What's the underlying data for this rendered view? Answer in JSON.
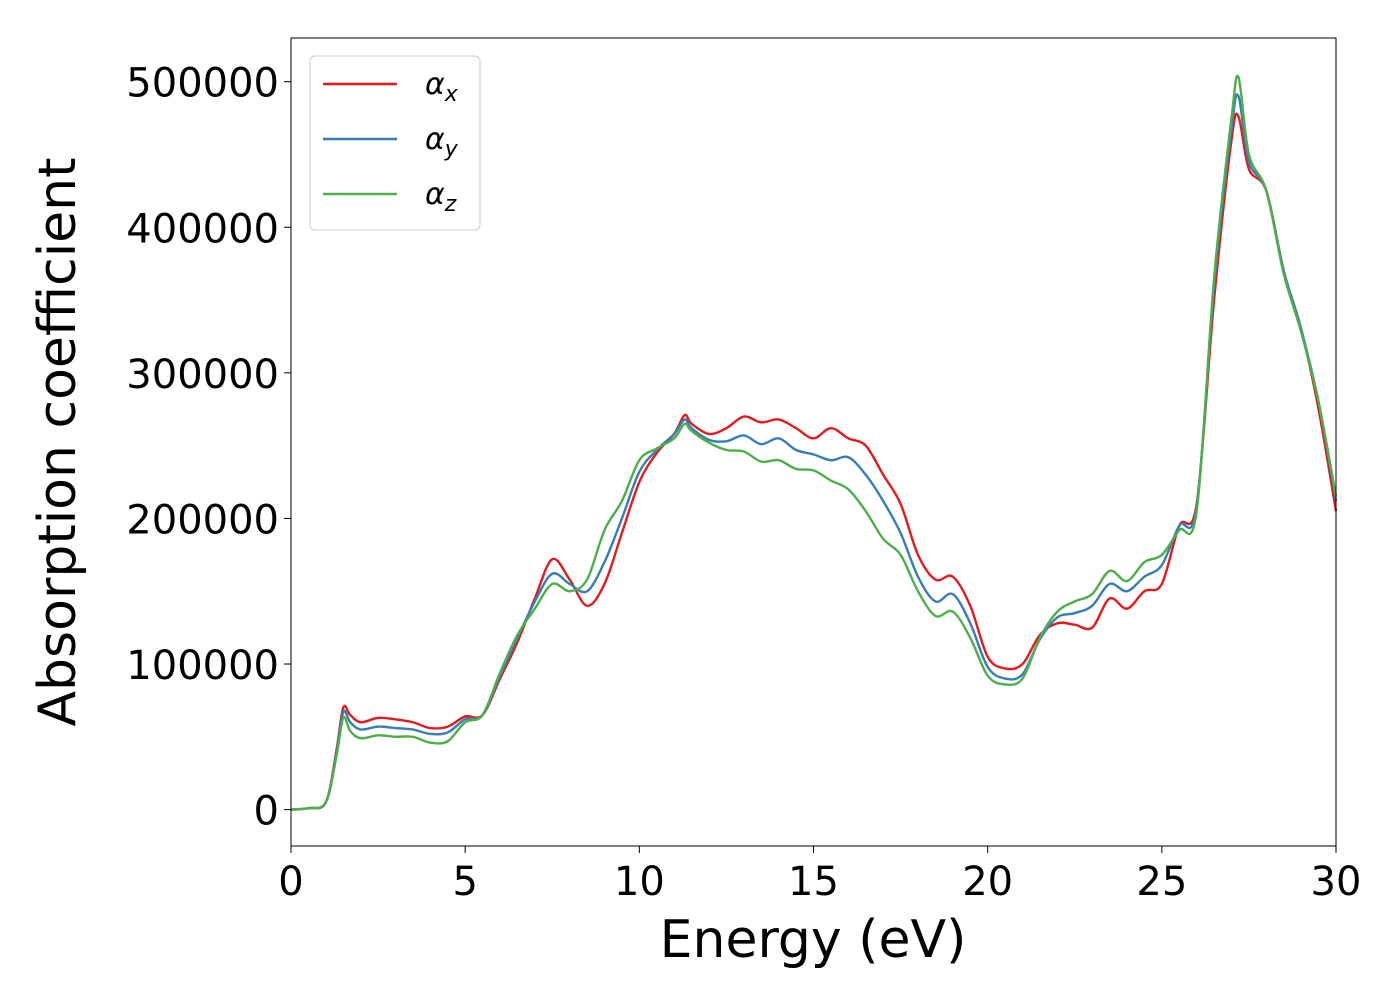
{
  "chart_data": {
    "type": "line",
    "title": "",
    "xlabel": "Energy (eV)",
    "ylabel": "Absorption coefficient",
    "xlim": [
      0,
      30
    ],
    "ylim": [
      -25000,
      530000
    ],
    "xticks": [
      0,
      5,
      10,
      15,
      20,
      25,
      30
    ],
    "xtick_labels": [
      "0",
      "5",
      "10",
      "15",
      "20",
      "25",
      "30"
    ],
    "yticks": [
      0,
      100000,
      200000,
      300000,
      400000,
      500000
    ],
    "ytick_labels": [
      "0",
      "100000",
      "200000",
      "300000",
      "400000",
      "500000"
    ],
    "grid": false,
    "legend_position": "top-left",
    "x": [
      0,
      0.5,
      1.0,
      1.3,
      1.5,
      1.7,
      2.0,
      2.5,
      3.0,
      3.5,
      4.0,
      4.5,
      5.0,
      5.5,
      6.0,
      6.5,
      7.0,
      7.5,
      8.0,
      8.5,
      9.0,
      9.5,
      10.0,
      10.5,
      11.0,
      11.3,
      11.5,
      12.0,
      12.5,
      13.0,
      13.5,
      14.0,
      14.5,
      15.0,
      15.5,
      16.0,
      16.5,
      17.0,
      17.5,
      18.0,
      18.5,
      19.0,
      19.5,
      20.0,
      20.5,
      21.0,
      21.5,
      22.0,
      22.5,
      23.0,
      23.5,
      24.0,
      24.5,
      25.0,
      25.5,
      26.0,
      26.5,
      27.0,
      27.2,
      27.5,
      28.0,
      28.5,
      29.0,
      29.5,
      30.0
    ],
    "series": [
      {
        "name": "α_x",
        "color": "#e41a1c",
        "values": [
          0,
          1000,
          5000,
          40000,
          70000,
          65000,
          60000,
          63000,
          62000,
          60000,
          56000,
          57000,
          64000,
          65000,
          90000,
          115000,
          145000,
          172000,
          158000,
          140000,
          155000,
          190000,
          225000,
          245000,
          258000,
          271000,
          265000,
          258000,
          262000,
          270000,
          266000,
          268000,
          262000,
          255000,
          262000,
          255000,
          250000,
          230000,
          210000,
          175000,
          158000,
          160000,
          140000,
          105000,
          97000,
          100000,
          120000,
          128000,
          127000,
          125000,
          145000,
          138000,
          150000,
          155000,
          195000,
          210000,
          350000,
          460000,
          476000,
          440000,
          425000,
          370000,
          330000,
          275000,
          205000
        ]
      },
      {
        "name": "α_y",
        "color": "#377eb8",
        "values": [
          0,
          1000,
          5000,
          38000,
          67000,
          60000,
          55000,
          57000,
          56000,
          55000,
          52000,
          53000,
          62000,
          65000,
          92000,
          118000,
          143000,
          162000,
          155000,
          150000,
          170000,
          200000,
          232000,
          247000,
          258000,
          268000,
          262000,
          254000,
          253000,
          257000,
          251000,
          255000,
          247000,
          244000,
          240000,
          242000,
          230000,
          212000,
          190000,
          160000,
          143000,
          148000,
          128000,
          98000,
          90000,
          93000,
          117000,
          132000,
          135000,
          140000,
          155000,
          150000,
          160000,
          168000,
          195000,
          208000,
          360000,
          468000,
          490000,
          445000,
          425000,
          370000,
          330000,
          280000,
          212000
        ]
      },
      {
        "name": "α_z",
        "color": "#4daf4a",
        "values": [
          0,
          1000,
          5000,
          36000,
          63000,
          54000,
          49000,
          51000,
          50000,
          50000,
          46000,
          47000,
          60000,
          65000,
          94000,
          120000,
          138000,
          155000,
          150000,
          158000,
          192000,
          212000,
          240000,
          248000,
          255000,
          265000,
          260000,
          252000,
          247000,
          246000,
          239000,
          240000,
          234000,
          233000,
          226000,
          220000,
          205000,
          186000,
          175000,
          150000,
          133000,
          136000,
          118000,
          92000,
          86000,
          90000,
          118000,
          136000,
          143000,
          148000,
          164000,
          157000,
          170000,
          175000,
          192000,
          205000,
          365000,
          475000,
          503000,
          450000,
          425000,
          368000,
          328000,
          280000,
          215000
        ]
      }
    ]
  }
}
